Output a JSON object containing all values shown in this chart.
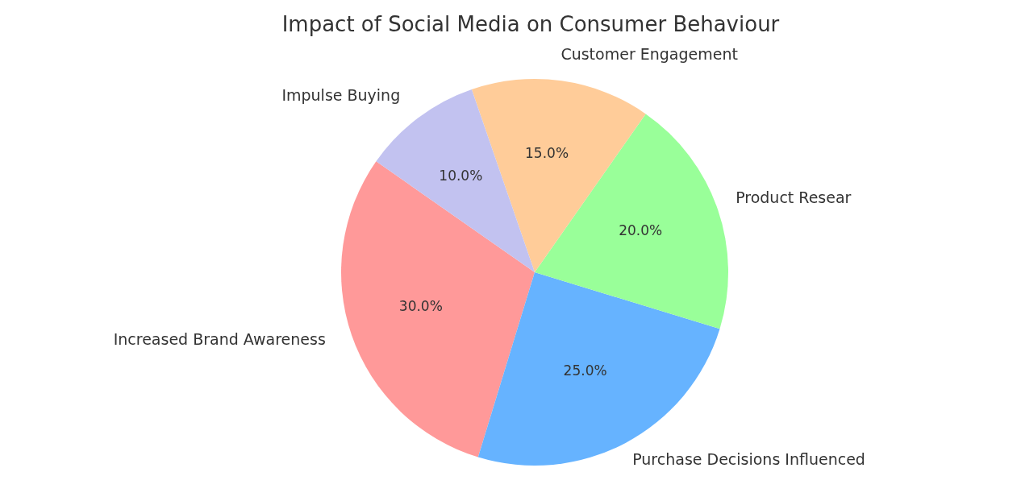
{
  "chart_data": {
    "type": "pie",
    "title": "Impact of Social Media on Consumer Behaviour",
    "categories": [
      "Increased Brand Awareness",
      "Purchase Decisions Influenced",
      "Product Resear",
      "Customer Engagement",
      "Impulse Buying"
    ],
    "values": [
      30,
      25,
      20,
      15,
      10
    ],
    "value_labels": [
      "30.0%",
      "25.0%",
      "20.0%",
      "15.0%",
      "10.0%"
    ],
    "colors": [
      "#ff9999",
      "#66b3ff",
      "#99ff99",
      "#ffcc99",
      "#c2c2f0"
    ],
    "legend": false
  }
}
